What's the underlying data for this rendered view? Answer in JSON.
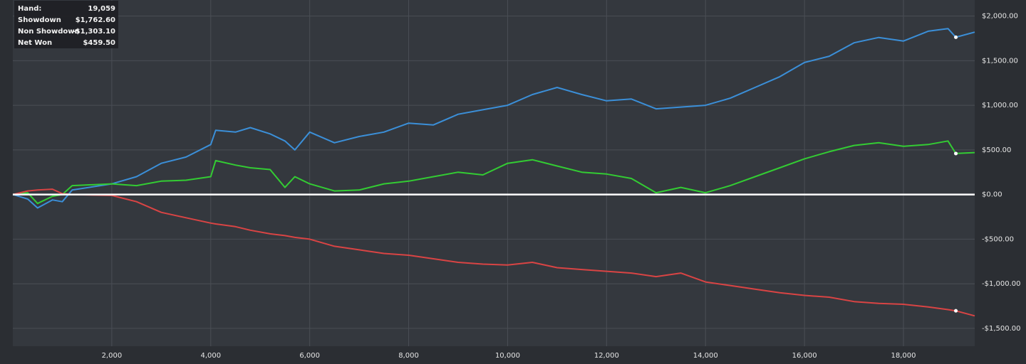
{
  "chart_data": {
    "type": "line",
    "x": [
      0,
      300,
      500,
      800,
      1000,
      1200,
      2000,
      2500,
      3000,
      3500,
      4000,
      4100,
      4500,
      4800,
      5200,
      5500,
      5700,
      6000,
      6500,
      7000,
      7500,
      8000,
      8500,
      9000,
      9500,
      10000,
      10500,
      11000,
      11500,
      12000,
      12500,
      13000,
      13500,
      14000,
      14500,
      15000,
      15500,
      16000,
      16500,
      17000,
      17500,
      18000,
      18500,
      18900,
      19059,
      19440
    ],
    "series": [
      {
        "name": "Showdown",
        "color": "#3b8fd8",
        "values": [
          0,
          -50,
          -150,
          -60,
          -80,
          50,
          120,
          200,
          350,
          420,
          560,
          720,
          700,
          750,
          680,
          600,
          500,
          700,
          580,
          650,
          700,
          800,
          780,
          900,
          950,
          1000,
          1120,
          1200,
          1120,
          1050,
          1070,
          960,
          980,
          1000,
          1080,
          1200,
          1320,
          1480,
          1550,
          1700,
          1760,
          1720,
          1830,
          1860,
          1762.6,
          1820
        ]
      },
      {
        "name": "Net Won",
        "color": "#33cc33",
        "values": [
          0,
          20,
          -100,
          -20,
          0,
          100,
          120,
          100,
          150,
          160,
          200,
          380,
          330,
          300,
          280,
          80,
          200,
          120,
          40,
          50,
          120,
          150,
          200,
          250,
          220,
          350,
          390,
          320,
          250,
          230,
          180,
          20,
          80,
          20,
          100,
          200,
          300,
          400,
          480,
          550,
          580,
          540,
          560,
          600,
          459.5,
          470
        ]
      },
      {
        "name": "Non Showdown",
        "color": "#d94444",
        "values": [
          0,
          40,
          50,
          60,
          10,
          0,
          -10,
          -80,
          -200,
          -260,
          -320,
          -330,
          -360,
          -400,
          -440,
          -460,
          -480,
          -500,
          -580,
          -620,
          -660,
          -680,
          -720,
          -760,
          -780,
          -790,
          -760,
          -820,
          -840,
          -860,
          -880,
          -920,
          -880,
          -980,
          -1020,
          -1060,
          -1100,
          -1130,
          -1150,
          -1200,
          -1220,
          -1230,
          -1260,
          -1290,
          -1303.1,
          -1360
        ]
      }
    ],
    "xlim": [
      0,
      19440
    ],
    "ylim": [
      -1700,
      2180
    ],
    "xticks": [
      {
        "value": 2000,
        "label": "2,000"
      },
      {
        "value": 4000,
        "label": "4,000"
      },
      {
        "value": 6000,
        "label": "6,000"
      },
      {
        "value": 8000,
        "label": "8,000"
      },
      {
        "value": 10000,
        "label": "10,000"
      },
      {
        "value": 12000,
        "label": "12,000"
      },
      {
        "value": 14000,
        "label": "14,000"
      },
      {
        "value": 16000,
        "label": "16,000"
      },
      {
        "value": 18000,
        "label": "18,000"
      }
    ],
    "yticks": [
      {
        "value": -1500,
        "label": "-$1,500.00"
      },
      {
        "value": -1000,
        "label": "-$1,000.00"
      },
      {
        "value": -500,
        "label": "-$500.00"
      },
      {
        "value": 0,
        "label": "$0.00"
      },
      {
        "value": 500,
        "label": "$500.00"
      },
      {
        "value": 1000,
        "label": "$1,000.00"
      },
      {
        "value": 1500,
        "label": "$1,500.00"
      },
      {
        "value": 2000,
        "label": "$2,000.00"
      }
    ],
    "grid": true,
    "info_box": [
      {
        "label": "Hand:",
        "value": {
          "value": 19059,
          "label": "19,059"
        }
      },
      {
        "label": "Showdown",
        "value": {
          "value": 1762.6,
          "label": "$1,762.60"
        }
      },
      {
        "label": "Non Showdown",
        "value": {
          "value": -1303.1,
          "label": "-$1,303.10"
        }
      },
      {
        "label": "Net Won",
        "value": {
          "value": 459.5,
          "label": "$459.50"
        }
      }
    ]
  }
}
